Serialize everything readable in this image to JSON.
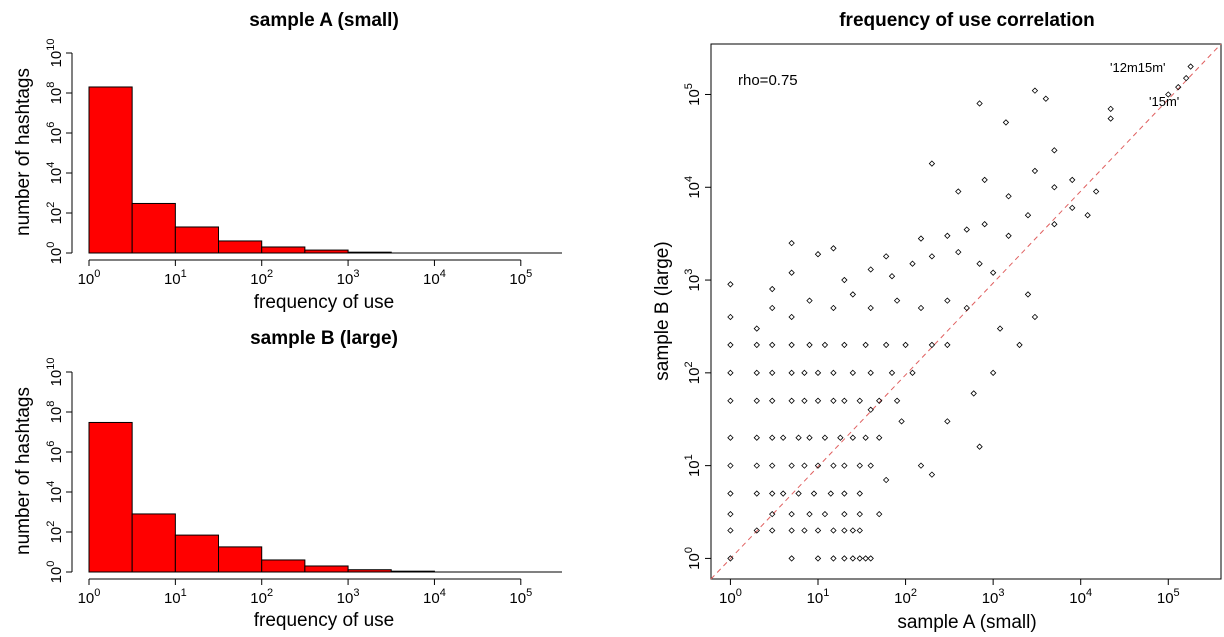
{
  "chart_data": [
    {
      "type": "bar",
      "title": "sample A (small)",
      "xlabel": "frequency of use",
      "ylabel": "number of hashtags",
      "x_scale": "log",
      "y_scale": "log",
      "xlim": [
        1,
        300000
      ],
      "ylim": [
        1,
        10000000000
      ],
      "x_ticks": [
        1,
        10,
        100,
        1000,
        10000,
        100000
      ],
      "y_ticks": [
        1,
        100,
        10000,
        1000000,
        100000000,
        10000000000
      ],
      "bar_color": "#ff0000",
      "bins": [
        {
          "from": 1,
          "to": 3.16,
          "count": 200000000
        },
        {
          "from": 3.16,
          "to": 10,
          "count": 300
        },
        {
          "from": 10,
          "to": 31.6,
          "count": 20
        },
        {
          "from": 31.6,
          "to": 100,
          "count": 4
        },
        {
          "from": 100,
          "to": 316,
          "count": 2
        },
        {
          "from": 316,
          "to": 1000,
          "count": 1.4
        },
        {
          "from": 1000,
          "to": 3160,
          "count": 1.1
        }
      ]
    },
    {
      "type": "bar",
      "title": "sample B (large)",
      "xlabel": "frequency of use",
      "ylabel": "number of hashtags",
      "x_scale": "log",
      "y_scale": "log",
      "xlim": [
        1,
        300000
      ],
      "ylim": [
        1,
        10000000000
      ],
      "x_ticks": [
        1,
        10,
        100,
        1000,
        10000,
        100000
      ],
      "y_ticks": [
        1,
        100,
        10000,
        1000000,
        100000000,
        10000000000
      ],
      "bar_color": "#ff0000",
      "bins": [
        {
          "from": 1,
          "to": 3.16,
          "count": 30000000
        },
        {
          "from": 3.16,
          "to": 10,
          "count": 800
        },
        {
          "from": 10,
          "to": 31.6,
          "count": 70
        },
        {
          "from": 31.6,
          "to": 100,
          "count": 18
        },
        {
          "from": 100,
          "to": 316,
          "count": 4
        },
        {
          "from": 316,
          "to": 1000,
          "count": 2
        },
        {
          "from": 1000,
          "to": 3160,
          "count": 1.3
        },
        {
          "from": 3160,
          "to": 10000,
          "count": 1.1
        }
      ]
    },
    {
      "type": "scatter",
      "title": "frequency of use correlation",
      "xlabel": "sample A (small)",
      "ylabel": "sample B (large)",
      "x_scale": "log",
      "y_scale": "log",
      "xlim": [
        0.6,
        400000
      ],
      "ylim": [
        0.6,
        350000
      ],
      "x_ticks": [
        1,
        10,
        100,
        1000,
        10000,
        100000
      ],
      "y_ticks": [
        1,
        10,
        100,
        1000,
        10000,
        100000
      ],
      "reference_line": {
        "from": [
          0.6,
          0.6
        ],
        "to": [
          400000,
          400000
        ],
        "color": "#e06060",
        "style": "dashed"
      },
      "annotations": [
        {
          "text": "rho=0.75",
          "x": 1.1,
          "y": 160000
        },
        {
          "text": "'12m15m'",
          "x": 80000,
          "y": 260000
        },
        {
          "text": "'15m'",
          "x": 110000,
          "y": 110000
        }
      ],
      "points": [
        [
          1,
          1
        ],
        [
          5,
          1
        ],
        [
          10,
          1
        ],
        [
          15,
          1
        ],
        [
          20,
          1
        ],
        [
          25,
          1
        ],
        [
          30,
          1
        ],
        [
          35,
          1
        ],
        [
          40,
          1
        ],
        [
          1,
          2
        ],
        [
          2,
          2
        ],
        [
          3,
          2
        ],
        [
          5,
          2
        ],
        [
          7,
          2
        ],
        [
          10,
          2
        ],
        [
          15,
          2
        ],
        [
          20,
          2
        ],
        [
          25,
          2
        ],
        [
          30,
          2
        ],
        [
          1,
          3
        ],
        [
          3,
          3
        ],
        [
          5,
          3
        ],
        [
          8,
          3
        ],
        [
          12,
          3
        ],
        [
          20,
          3
        ],
        [
          30,
          3
        ],
        [
          50,
          3
        ],
        [
          1,
          5
        ],
        [
          2,
          5
        ],
        [
          3,
          5
        ],
        [
          4,
          5
        ],
        [
          6,
          5
        ],
        [
          9,
          5
        ],
        [
          14,
          5
        ],
        [
          20,
          5
        ],
        [
          30,
          5
        ],
        [
          1,
          10
        ],
        [
          2,
          10
        ],
        [
          3,
          10
        ],
        [
          5,
          10
        ],
        [
          7,
          10
        ],
        [
          10,
          10
        ],
        [
          15,
          10
        ],
        [
          20,
          10
        ],
        [
          30,
          10
        ],
        [
          40,
          10
        ],
        [
          1,
          20
        ],
        [
          2,
          20
        ],
        [
          3,
          20
        ],
        [
          4,
          20
        ],
        [
          6,
          20
        ],
        [
          8,
          20
        ],
        [
          12,
          20
        ],
        [
          18,
          20
        ],
        [
          25,
          20
        ],
        [
          35,
          20
        ],
        [
          50,
          20
        ],
        [
          1,
          50
        ],
        [
          2,
          50
        ],
        [
          3,
          50
        ],
        [
          5,
          50
        ],
        [
          7,
          50
        ],
        [
          10,
          50
        ],
        [
          15,
          50
        ],
        [
          20,
          50
        ],
        [
          30,
          50
        ],
        [
          50,
          50
        ],
        [
          80,
          50
        ],
        [
          1,
          100
        ],
        [
          2,
          100
        ],
        [
          3,
          100
        ],
        [
          5,
          100
        ],
        [
          7,
          100
        ],
        [
          10,
          100
        ],
        [
          15,
          100
        ],
        [
          25,
          100
        ],
        [
          40,
          100
        ],
        [
          70,
          100
        ],
        [
          120,
          100
        ],
        [
          1,
          200
        ],
        [
          2,
          200
        ],
        [
          3,
          200
        ],
        [
          5,
          200
        ],
        [
          8,
          200
        ],
        [
          12,
          200
        ],
        [
          20,
          200
        ],
        [
          35,
          200
        ],
        [
          60,
          200
        ],
        [
          100,
          200
        ],
        [
          200,
          200
        ],
        [
          300,
          200
        ],
        [
          1,
          400
        ],
        [
          2,
          300
        ],
        [
          3,
          500
        ],
        [
          5,
          400
        ],
        [
          8,
          600
        ],
        [
          15,
          500
        ],
        [
          25,
          700
        ],
        [
          40,
          500
        ],
        [
          80,
          600
        ],
        [
          150,
          500
        ],
        [
          300,
          600
        ],
        [
          500,
          500
        ],
        [
          1,
          900
        ],
        [
          3,
          800
        ],
        [
          5,
          1200
        ],
        [
          10,
          1900
        ],
        [
          20,
          1000
        ],
        [
          40,
          1300
        ],
        [
          70,
          1100
        ],
        [
          120,
          1500
        ],
        [
          200,
          1800
        ],
        [
          400,
          2000
        ],
        [
          700,
          1500
        ],
        [
          1000,
          1200
        ],
        [
          5,
          2500
        ],
        [
          15,
          2200
        ],
        [
          60,
          1800
        ],
        [
          150,
          2800
        ],
        [
          300,
          3000
        ],
        [
          500,
          3500
        ],
        [
          800,
          4000
        ],
        [
          1500,
          3000
        ],
        [
          2500,
          5000
        ],
        [
          5000,
          4000
        ],
        [
          8000,
          6000
        ],
        [
          12000,
          5000
        ],
        [
          200,
          18000
        ],
        [
          400,
          9000
        ],
        [
          800,
          12000
        ],
        [
          1500,
          8000
        ],
        [
          3000,
          15000
        ],
        [
          5000,
          10000
        ],
        [
          8000,
          12000
        ],
        [
          15000,
          9000
        ],
        [
          700,
          80000
        ],
        [
          1400,
          50000
        ],
        [
          3000,
          110000
        ],
        [
          4000,
          90000
        ],
        [
          5000,
          25000
        ],
        [
          22000,
          70000
        ],
        [
          22000,
          55000
        ],
        [
          150,
          10
        ],
        [
          200,
          8
        ],
        [
          700,
          16
        ],
        [
          60,
          7
        ],
        [
          40,
          40
        ],
        [
          90,
          30
        ],
        [
          300,
          30
        ],
        [
          600,
          60
        ],
        [
          1000,
          100
        ],
        [
          2000,
          200
        ],
        [
          3000,
          400
        ],
        [
          1200,
          300
        ],
        [
          2500,
          700
        ],
        [
          100000,
          100000
        ],
        [
          130000,
          120000
        ],
        [
          160000,
          150000
        ],
        [
          180000,
          200000
        ]
      ]
    }
  ]
}
